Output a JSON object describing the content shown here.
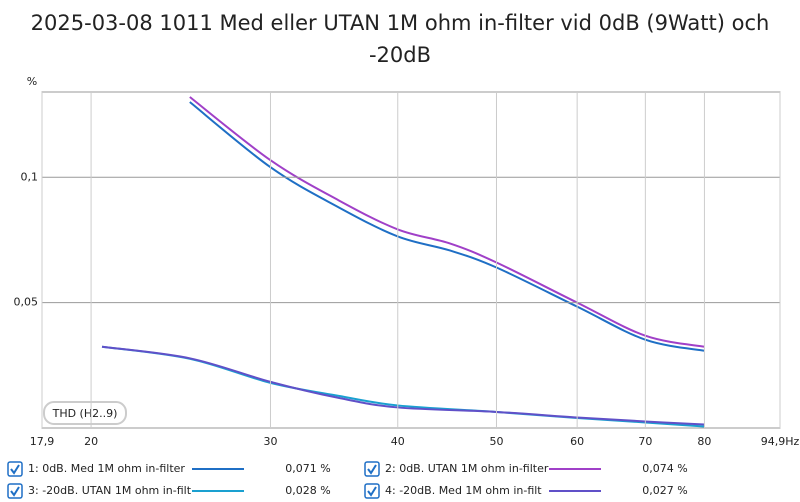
{
  "chart_data": {
    "type": "line",
    "title": "2025-03-08 1011 Med eller UTAN 1M ohm in-filter vid 0dB (9Watt) och -20dB",
    "y_label": "%",
    "badge": "THD (H2..9)",
    "log_x": true,
    "grid": true,
    "xlim": [
      17.9,
      94.9
    ],
    "xticks": [
      {
        "value": 17.9,
        "label": "17,9"
      },
      20,
      30,
      40,
      50,
      60,
      70,
      80,
      {
        "value": 94.9,
        "label": "94,9Hz"
      }
    ],
    "ylim": [
      0,
      0.134
    ],
    "yticks": [
      {
        "value": 0.05,
        "label": "0,05"
      },
      {
        "value": 0.1,
        "label": "0,1"
      }
    ],
    "series": [
      {
        "name": "1: 0dB. Med 1M ohm in-filter",
        "color": "#1f6fc5",
        "readout": "0,071 %",
        "x": [
          25,
          30,
          35,
          40,
          45,
          50,
          60,
          70,
          80
        ],
        "values": [
          0.13,
          0.104,
          0.088,
          0.0764,
          0.0708,
          0.064,
          0.0484,
          0.0352,
          0.0308
        ]
      },
      {
        "name": "2: 0dB. UTAN 1M ohm in-filter",
        "color": "#a040c8",
        "readout": "0,074 %",
        "x": [
          25,
          30,
          35,
          40,
          45,
          50,
          60,
          70,
          80
        ],
        "values": [
          0.132,
          0.1068,
          0.0908,
          0.0792,
          0.0736,
          0.066,
          0.05,
          0.0368,
          0.0324
        ]
      },
      {
        "name": "3: -20dB. UTAN 1M ohm in-filt",
        "color": "#1aa0d0",
        "readout": "0,028 %",
        "x": [
          20.5,
          25,
          30,
          35,
          40,
          50,
          60,
          70,
          80
        ],
        "values": [
          0.0324,
          0.0276,
          0.018,
          0.0128,
          0.009,
          0.0064,
          0.004,
          0.0022,
          0.0006
        ]
      },
      {
        "name": "4: -20dB. Med 1M ohm in-filt",
        "color": "#6050c8",
        "readout": "0,027 %",
        "x": [
          20.5,
          25,
          30,
          35,
          40,
          50,
          60,
          70,
          80
        ],
        "values": [
          0.0324,
          0.0278,
          0.0184,
          0.012,
          0.0082,
          0.0064,
          0.0042,
          0.0026,
          0.0014
        ]
      }
    ]
  }
}
